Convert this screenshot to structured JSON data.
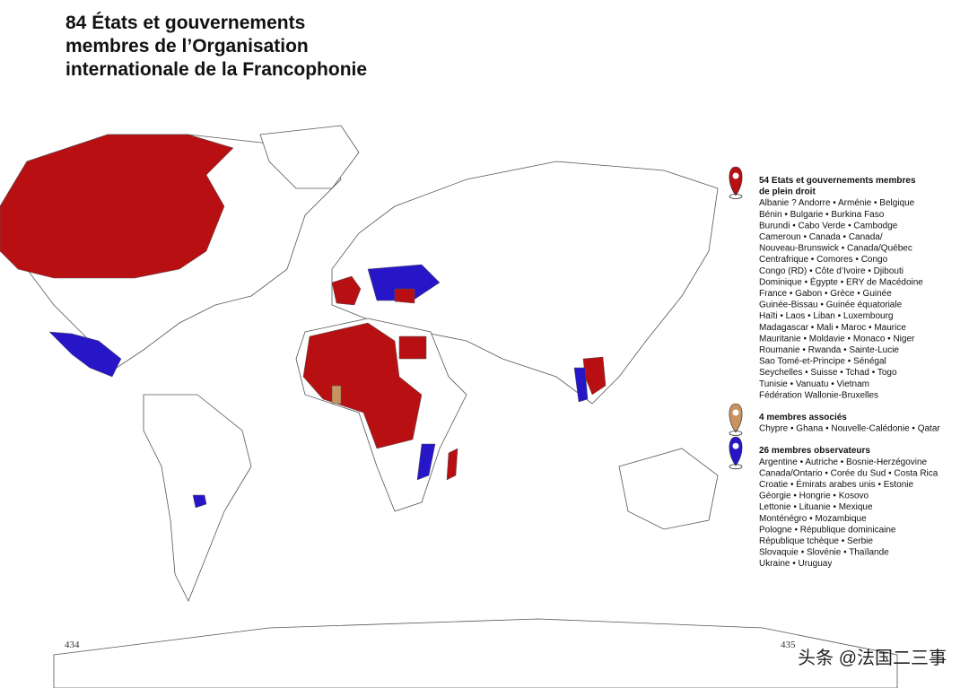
{
  "title_lines": [
    "84 États et gouvernements",
    "membres de l’Organisation",
    "internationale de la Francophonie"
  ],
  "legend": [
    {
      "color": "#b80f12",
      "header": [
        "54 Etats et gouvernements membres",
        "de plein droit"
      ],
      "lines": [
        "Albanie ? Andorre • Arménie • Belgique",
        "Bénin • Bulgarie • Burkina Faso",
        "Burundi • Cabo Verde • Cambodge",
        "Cameroun • Canada • Canada/",
        "Nouveau-Brunswick • Canada/Québec",
        "Centrafrique • Comores • Congo",
        "Congo (RD) • Côte d’Ivoire • Djibouti",
        "Dominique • Égypte • ERY de Macédoine",
        "France • Gabon • Grèce • Guinée",
        "Guinée-Bissau • Guinée équatoriale",
        "Haïti • Laos • Liban • Luxembourg",
        "Madagascar • Mali • Maroc • Maurice",
        "Mauritanie • Moldavie • Monaco • Niger",
        "Roumanie • Rwanda • Sainte-Lucie",
        "Sao Tomé-et-Principe • Sénégal",
        "Seychelles • Suisse • Tchad • Togo",
        "Tunisie • Vanuatu • Vietnam",
        "Fédération Wallonie-Bruxelles"
      ]
    },
    {
      "color": "#c8935e",
      "header": [
        "4 membres associés"
      ],
      "lines": [
        "Chypre • Ghana • Nouvelle-Calédonie • Qatar"
      ]
    },
    {
      "color": "#2616c8",
      "header": [
        "26 membres observateurs"
      ],
      "lines": [
        "Argentine • Autriche • Bosnie-Herzégovine",
        "Canada/Ontario • Corée du Sud • Costa Rica",
        "Croatie • Émirats arabes unis • Estonie",
        "Géorgie • Hongrie • Kosovo",
        "Lettonie • Lituanie • Mexique",
        "Monténégro • Mozambique",
        "Pologne • République dominicaine",
        "République tchèque • Serbie",
        "Slovaquie • Slovénie • Thaïlande",
        "Ukraine • Uruguay"
      ]
    }
  ],
  "page_numbers": [
    "434",
    "435"
  ],
  "watermark": "头条 @法国二三事"
}
